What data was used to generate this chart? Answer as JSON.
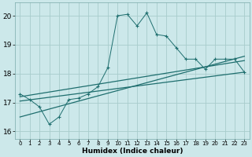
{
  "xlabel": "Humidex (Indice chaleur)",
  "bg_color": "#cce8ea",
  "grid_color": "#a8cccc",
  "line_color": "#1e6e6e",
  "xlim": [
    -0.5,
    23.5
  ],
  "ylim": [
    15.75,
    20.45
  ],
  "yticks": [
    16,
    17,
    18,
    19,
    20
  ],
  "xticks": [
    0,
    1,
    2,
    3,
    4,
    5,
    6,
    7,
    8,
    9,
    10,
    11,
    12,
    13,
    14,
    15,
    16,
    17,
    18,
    19,
    20,
    21,
    22,
    23
  ],
  "main_x": [
    0,
    1,
    2,
    3,
    4,
    5,
    6,
    7,
    8,
    9,
    10,
    11,
    12,
    13,
    14,
    15,
    16,
    17,
    18,
    19,
    20,
    21,
    22,
    23
  ],
  "main_y": [
    17.3,
    17.1,
    16.85,
    16.25,
    16.5,
    17.1,
    17.15,
    17.3,
    17.55,
    18.2,
    20.0,
    20.05,
    19.65,
    20.1,
    19.35,
    19.3,
    18.9,
    18.5,
    18.5,
    18.15,
    18.5,
    18.5,
    18.5,
    18.05
  ],
  "line1_x": [
    0,
    23
  ],
  "line1_y": [
    17.05,
    18.05
  ],
  "line2_x": [
    0,
    23
  ],
  "line2_y": [
    17.2,
    18.45
  ],
  "line3_x": [
    0,
    23
  ],
  "line3_y": [
    16.5,
    18.6
  ]
}
